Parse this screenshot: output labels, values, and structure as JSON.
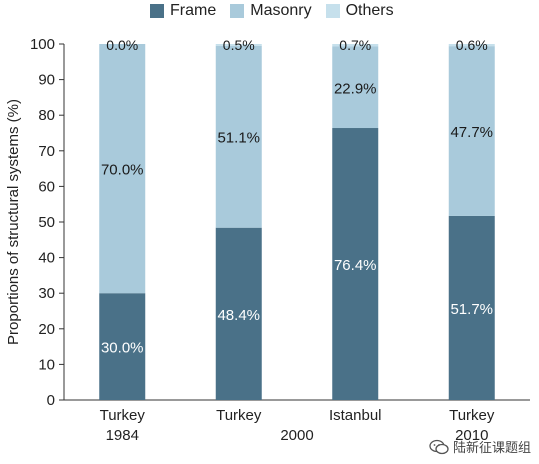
{
  "chart_data": {
    "type": "bar",
    "stacked": true,
    "categories": [
      {
        "lines": [
          "Turkey",
          "1984"
        ]
      },
      {
        "lines": [
          "Turkey",
          ""
        ]
      },
      {
        "lines": [
          "Istanbul",
          ""
        ]
      },
      {
        "lines": [
          "Turkey",
          "2010"
        ]
      }
    ],
    "group_label": "2000",
    "ylabel": "Proportions of structural systems (%)",
    "ylim": [
      0,
      100
    ],
    "yticks": [
      0,
      10,
      20,
      30,
      40,
      50,
      60,
      70,
      80,
      90,
      100
    ],
    "legend_position": "top",
    "series": [
      {
        "name": "Frame",
        "color": "#4a7188",
        "label_color": "#ffffff",
        "values": [
          30.0,
          48.4,
          76.4,
          51.7
        ],
        "labels": [
          "30.0%",
          "48.4%",
          "76.4%",
          "51.7%"
        ]
      },
      {
        "name": "Masonry",
        "color": "#a9cadb",
        "label_color": "#1a1a1a",
        "values": [
          70.0,
          51.1,
          22.9,
          47.7
        ],
        "labels": [
          "70.0%",
          "51.1%",
          "22.9%",
          "47.7%"
        ]
      },
      {
        "name": "Others",
        "color": "#c6e0ec",
        "label_color": "#1a1a1a",
        "values": [
          0.0,
          0.5,
          0.7,
          0.6
        ],
        "labels": [
          "0.0%",
          "0.5%",
          "0.7%",
          "0.6%"
        ]
      }
    ]
  },
  "watermark": {
    "text": "陆新征课题组",
    "icon": "wechat-icon"
  }
}
